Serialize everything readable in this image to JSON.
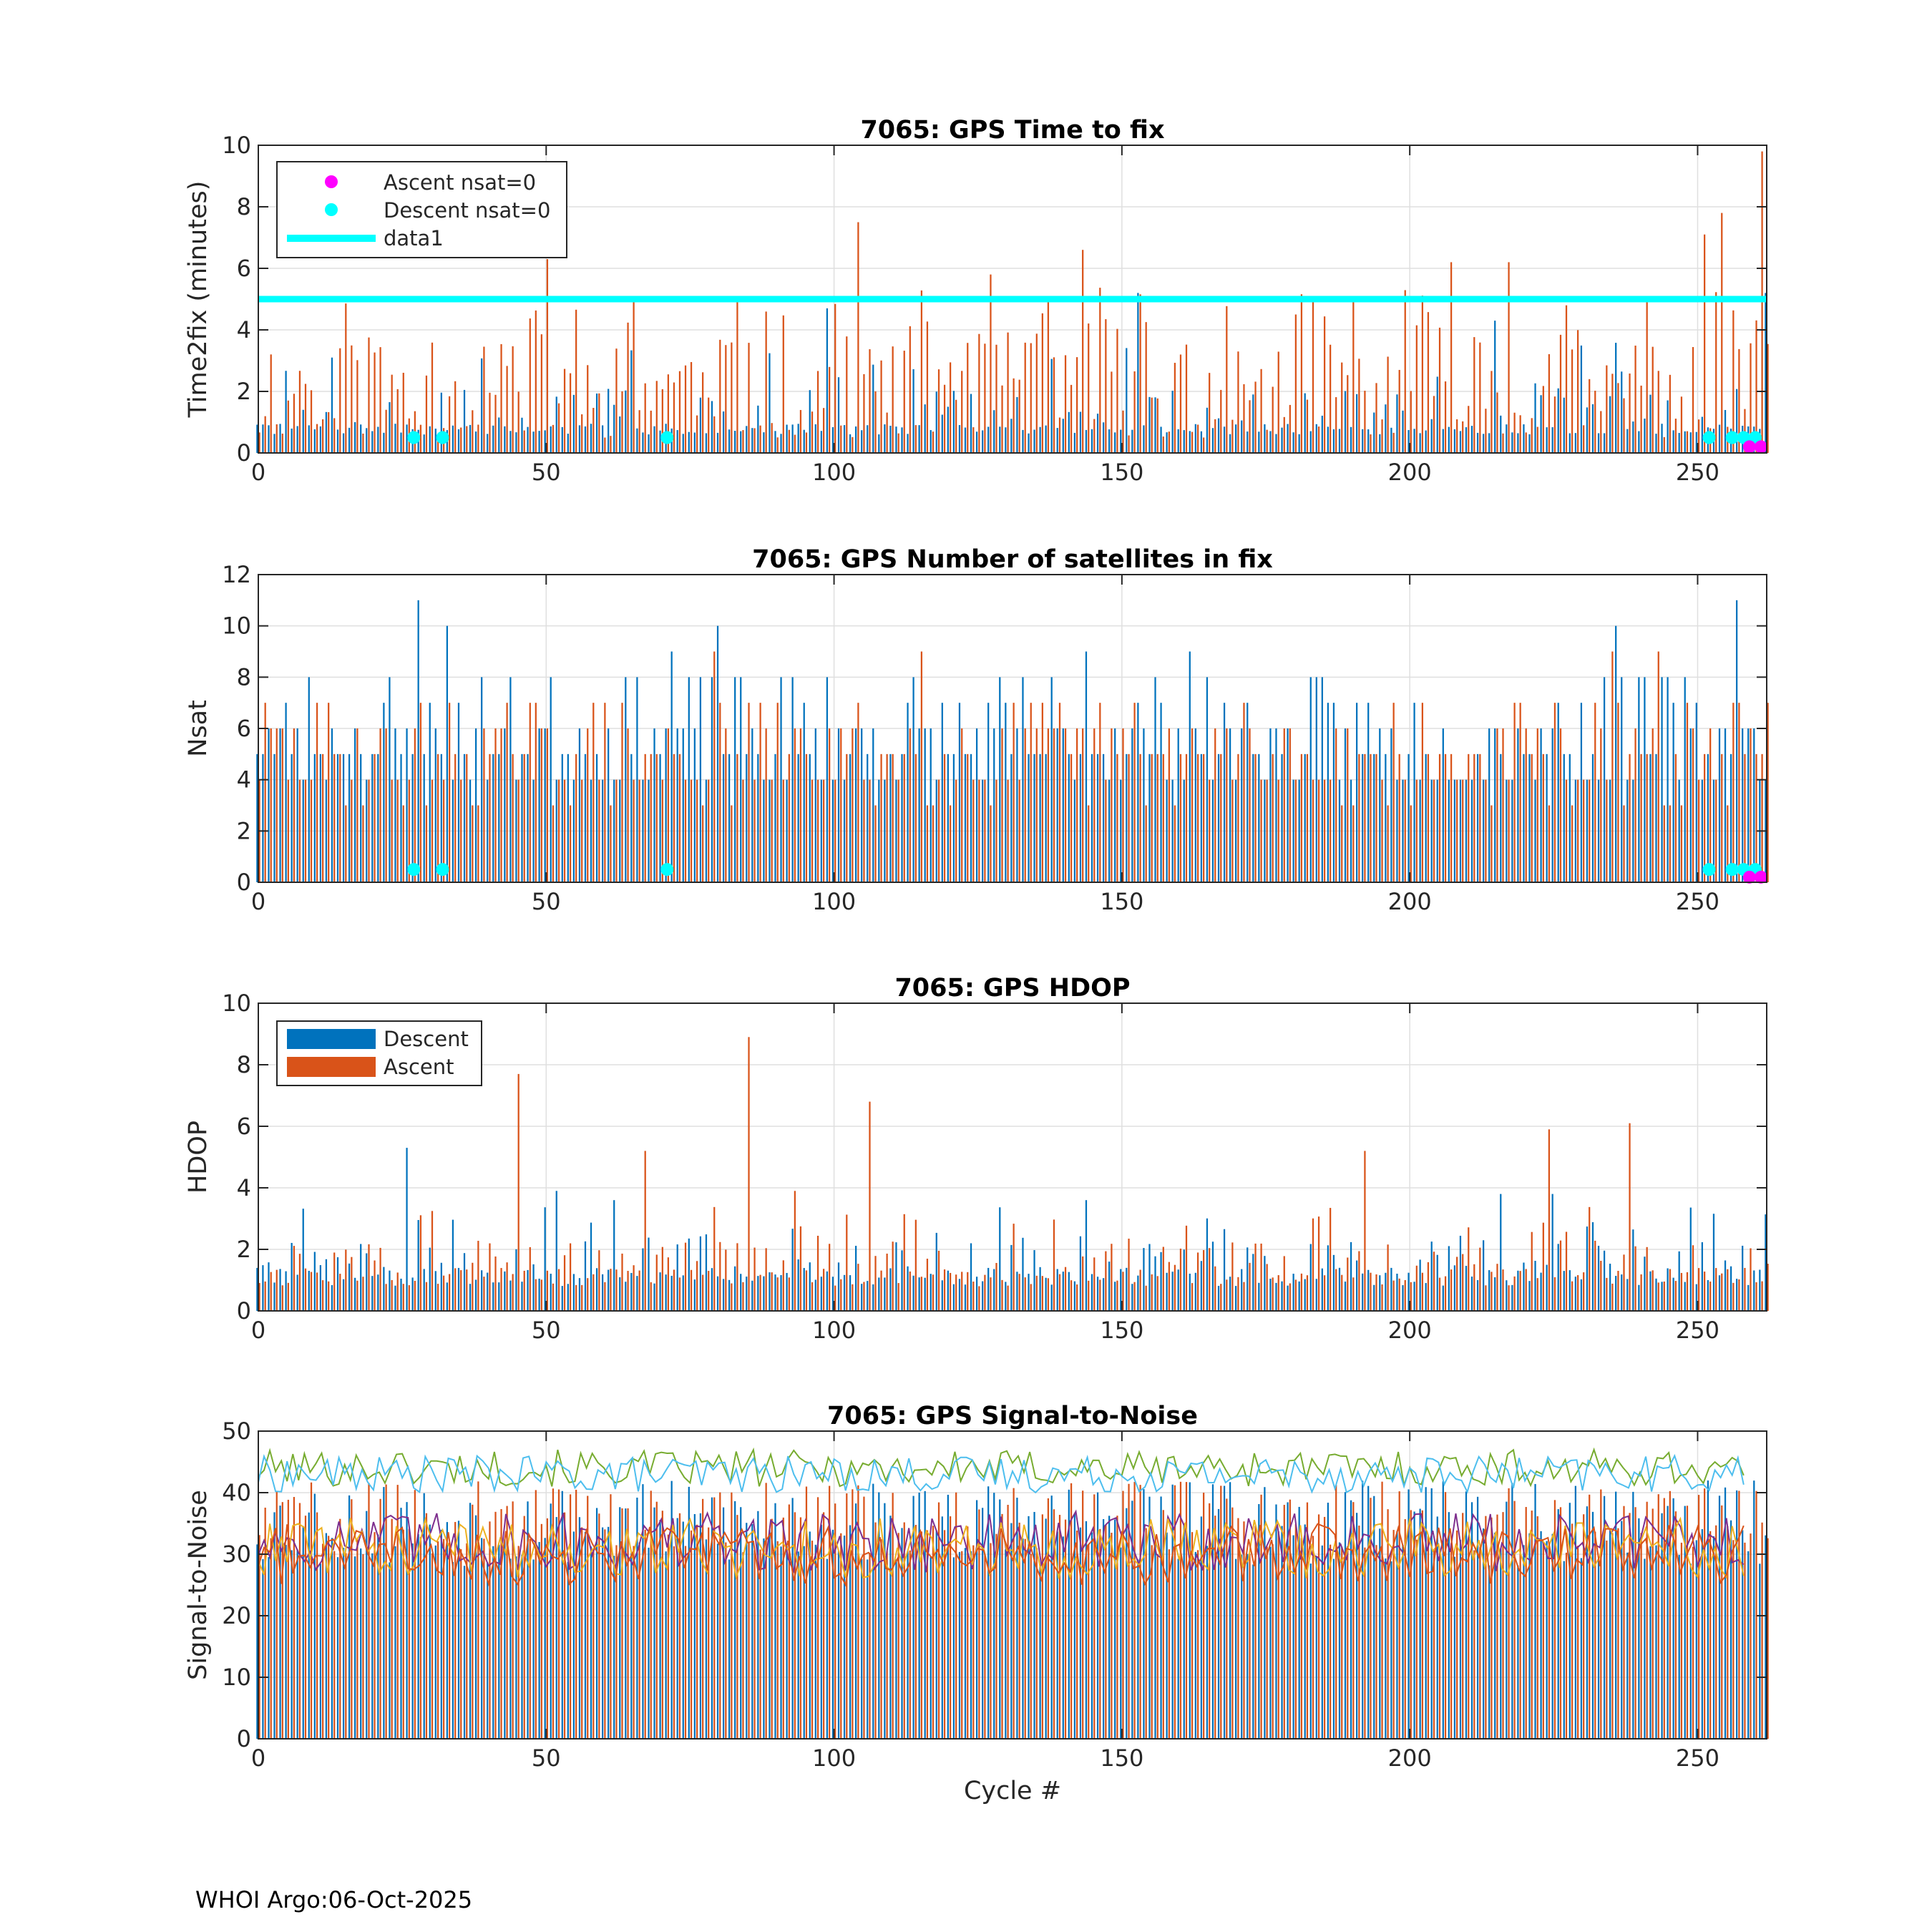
{
  "footer": {
    "text": "WHOI Argo:06-Oct-2025"
  },
  "colors": {
    "descent": "#0072BD",
    "ascent": "#D95319",
    "ascent_nsat0": "#FF00FF",
    "descent_nsat0": "#00FFFF",
    "threshold": "#00FFFF",
    "snr_lines": [
      "#77AC30",
      "#4DBEEE",
      "#7E2F8E",
      "#EDB120",
      "#D95319"
    ]
  },
  "chart_data": [
    {
      "id": "time2fix",
      "type": "bar",
      "title": "7065: GPS Time to fix",
      "xlabel": "",
      "ylabel": "Time2fix (minutes)",
      "xlim": [
        0,
        262
      ],
      "ylim": [
        0,
        10
      ],
      "xticks": [
        "0",
        "50",
        "100",
        "150",
        "200",
        "250"
      ],
      "yticks": [
        "0",
        "2",
        "4",
        "6",
        "8",
        "10"
      ],
      "grid": true,
      "legend_position": "top-left",
      "legend": [
        "Ascent nsat=0",
        "Descent nsat=0",
        "data1"
      ],
      "threshold": 5,
      "descent_nsat0_cycles": [
        27,
        32,
        71,
        252,
        256,
        258,
        260
      ],
      "ascent_nsat0_cycles": [
        259,
        261
      ],
      "nsat0_marker_value": 0.5,
      "ascent_nsat0_marker_value": 0.2,
      "peaks_ascent": [
        [
          50,
          6.3
        ],
        [
          104,
          7.5
        ],
        [
          127,
          5.8
        ],
        [
          143,
          6.6
        ],
        [
          183,
          5.1
        ],
        [
          207,
          6.2
        ],
        [
          217,
          6.2
        ],
        [
          251,
          7.1
        ],
        [
          254,
          7.8
        ],
        [
          261,
          9.8
        ]
      ],
      "peaks_descent": [
        [
          13,
          3.1
        ],
        [
          99,
          4.7
        ],
        [
          153,
          5.2
        ],
        [
          215,
          4.3
        ],
        [
          262,
          5.2
        ]
      ]
    },
    {
      "id": "nsat",
      "type": "bar",
      "title": "7065: GPS Number of satellites in fix",
      "xlabel": "",
      "ylabel": "Nsat",
      "xlim": [
        0,
        262
      ],
      "ylim": [
        0,
        12
      ],
      "xticks": [
        "0",
        "50",
        "100",
        "150",
        "200",
        "250"
      ],
      "yticks": [
        "0",
        "2",
        "4",
        "6",
        "8",
        "10",
        "12"
      ],
      "grid": true,
      "descent_nsat0_cycles": [
        27,
        32,
        71,
        252,
        256,
        258,
        260
      ],
      "ascent_nsat0_cycles": [
        259,
        261
      ],
      "nsat0_marker_value": 0.5,
      "ascent_nsat0_marker_value": 0.2,
      "peaks_descent": [
        [
          28,
          11
        ],
        [
          33,
          10
        ],
        [
          80,
          10
        ],
        [
          236,
          10
        ],
        [
          257,
          11
        ],
        [
          144,
          9
        ],
        [
          162,
          9
        ],
        [
          72,
          9
        ]
      ],
      "peaks_ascent": [
        [
          79,
          9
        ],
        [
          115,
          9
        ],
        [
          235,
          9
        ],
        [
          243,
          9
        ]
      ]
    },
    {
      "id": "hdop",
      "type": "bar",
      "title": "7065: GPS HDOP",
      "xlabel": "",
      "ylabel": "HDOP",
      "xlim": [
        0,
        262
      ],
      "ylim": [
        0,
        10
      ],
      "xticks": [
        "0",
        "50",
        "100",
        "150",
        "200",
        "250"
      ],
      "yticks": [
        "0",
        "2",
        "4",
        "6",
        "8",
        "10"
      ],
      "grid": true,
      "legend_position": "top-left",
      "legend": [
        "Descent",
        "Ascent"
      ],
      "peaks_ascent": [
        [
          45,
          7.7
        ],
        [
          85,
          8.9
        ],
        [
          106,
          6.8
        ],
        [
          67,
          5.2
        ],
        [
          192,
          5.2
        ],
        [
          224,
          5.9
        ],
        [
          238,
          6.1
        ],
        [
          93,
          3.9
        ]
      ],
      "peaks_descent": [
        [
          26,
          5.3
        ],
        [
          52,
          3.9
        ],
        [
          62,
          3.6
        ],
        [
          144,
          3.6
        ],
        [
          216,
          3.8
        ],
        [
          225,
          3.8
        ]
      ]
    },
    {
      "id": "snr",
      "type": "bar+line",
      "title": "7065: GPS Signal-to-Noise",
      "xlabel": "Cycle #",
      "ylabel": "Signal-to-Noise",
      "xlim": [
        0,
        262
      ],
      "ylim": [
        0,
        50
      ],
      "xticks": [
        "0",
        "50",
        "100",
        "150",
        "200",
        "250"
      ],
      "yticks": [
        "0",
        "10",
        "20",
        "30",
        "40",
        "50"
      ],
      "grid": true,
      "line_means": [
        44,
        43,
        32,
        31,
        30
      ]
    }
  ]
}
